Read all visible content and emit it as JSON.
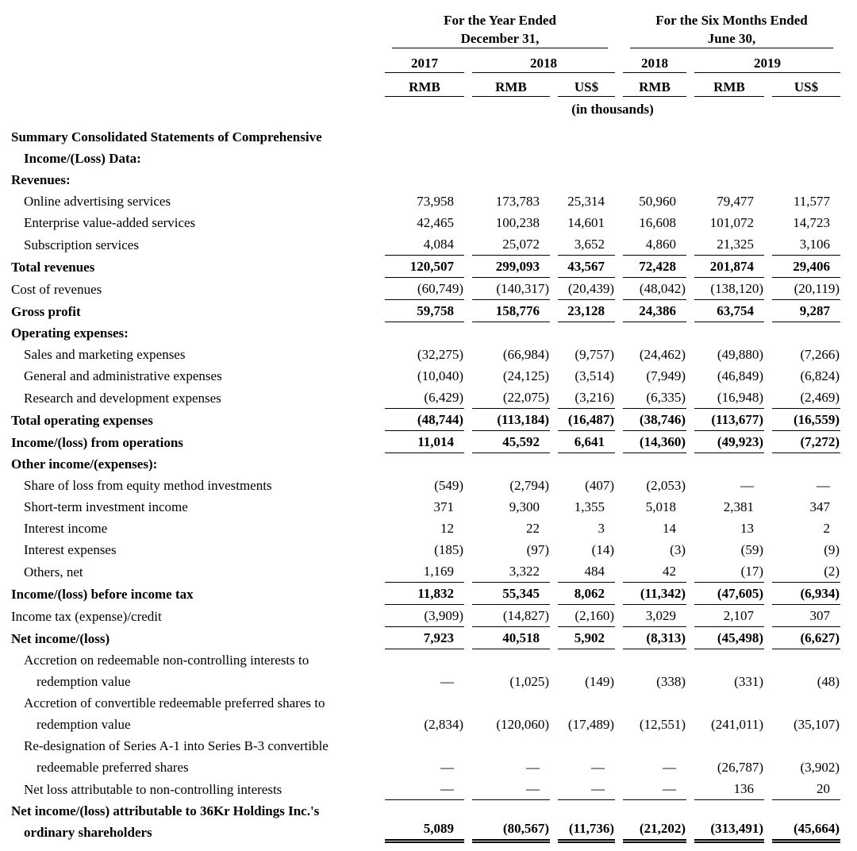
{
  "page": {
    "background": "#ffffff",
    "text_color": "#000000"
  },
  "table": {
    "col_groups": [
      {
        "line1": "For the Year Ended",
        "line2": "December 31,"
      },
      {
        "line1": "For the Six Months Ended",
        "line2": "June 30,"
      }
    ],
    "year_headers": [
      {
        "label": "2017",
        "span": 1
      },
      {
        "label": "2018",
        "span": 2
      },
      {
        "label": "2018",
        "span": 1
      },
      {
        "label": "2019",
        "span": 2
      }
    ],
    "currency_headers": [
      "RMB",
      "RMB",
      "US$",
      "RMB",
      "RMB",
      "US$"
    ],
    "units_note": "(in thousands)",
    "rows": [
      {
        "lines": [
          "Summary Consolidated Statements of Comprehensive",
          "Income/(Loss) Data:"
        ],
        "indents": [
          0,
          1
        ],
        "bold": true,
        "values": null,
        "rule": "none"
      },
      {
        "lines": [
          "Revenues:"
        ],
        "indents": [
          0
        ],
        "bold": true,
        "values": null,
        "rule": "none"
      },
      {
        "lines": [
          "Online advertising services"
        ],
        "indents": [
          1
        ],
        "bold": false,
        "values": [
          "73,958",
          "173,783",
          "25,314",
          "50,960",
          "79,477",
          "11,577"
        ],
        "rule": "none"
      },
      {
        "lines": [
          "Enterprise value-added services"
        ],
        "indents": [
          1
        ],
        "bold": false,
        "values": [
          "42,465",
          "100,238",
          "14,601",
          "16,608",
          "101,072",
          "14,723"
        ],
        "rule": "none"
      },
      {
        "lines": [
          "Subscription services"
        ],
        "indents": [
          1
        ],
        "bold": false,
        "values": [
          "4,084",
          "25,072",
          "3,652",
          "4,860",
          "21,325",
          "3,106"
        ],
        "rule": "single"
      },
      {
        "lines": [
          "Total revenues"
        ],
        "indents": [
          0
        ],
        "bold": true,
        "values": [
          "120,507",
          "299,093",
          "43,567",
          "72,428",
          "201,874",
          "29,406"
        ],
        "rule": "single"
      },
      {
        "lines": [
          "Cost of revenues"
        ],
        "indents": [
          0
        ],
        "bold": false,
        "values": [
          "(60,749)",
          "(140,317)",
          "(20,439)",
          "(48,042)",
          "(138,120)",
          "(20,119)"
        ],
        "rule": "single"
      },
      {
        "lines": [
          "Gross profit"
        ],
        "indents": [
          0
        ],
        "bold": true,
        "values": [
          "59,758",
          "158,776",
          "23,128",
          "24,386",
          "63,754",
          "9,287"
        ],
        "rule": "single"
      },
      {
        "lines": [
          "Operating expenses:"
        ],
        "indents": [
          0
        ],
        "bold": true,
        "values": null,
        "rule": "none"
      },
      {
        "lines": [
          "Sales and marketing expenses"
        ],
        "indents": [
          1
        ],
        "bold": false,
        "values": [
          "(32,275)",
          "(66,984)",
          "(9,757)",
          "(24,462)",
          "(49,880)",
          "(7,266)"
        ],
        "rule": "none"
      },
      {
        "lines": [
          "General and administrative expenses"
        ],
        "indents": [
          1
        ],
        "bold": false,
        "values": [
          "(10,040)",
          "(24,125)",
          "(3,514)",
          "(7,949)",
          "(46,849)",
          "(6,824)"
        ],
        "rule": "none"
      },
      {
        "lines": [
          "Research and development expenses"
        ],
        "indents": [
          1
        ],
        "bold": false,
        "values": [
          "(6,429)",
          "(22,075)",
          "(3,216)",
          "(6,335)",
          "(16,948)",
          "(2,469)"
        ],
        "rule": "single"
      },
      {
        "lines": [
          "Total operating expenses"
        ],
        "indents": [
          0
        ],
        "bold": true,
        "values": [
          "(48,744)",
          "(113,184)",
          "(16,487)",
          "(38,746)",
          "(113,677)",
          "(16,559)"
        ],
        "rule": "single"
      },
      {
        "lines": [
          "Income/(loss) from operations"
        ],
        "indents": [
          0
        ],
        "bold": true,
        "values": [
          "11,014",
          "45,592",
          "6,641",
          "(14,360)",
          "(49,923)",
          "(7,272)"
        ],
        "rule": "single"
      },
      {
        "lines": [
          "Other income/(expenses):"
        ],
        "indents": [
          0
        ],
        "bold": true,
        "values": null,
        "rule": "none"
      },
      {
        "lines": [
          "Share of loss from equity method investments"
        ],
        "indents": [
          1
        ],
        "bold": false,
        "values": [
          "(549)",
          "(2,794)",
          "(407)",
          "(2,053)",
          "—",
          "—"
        ],
        "rule": "none"
      },
      {
        "lines": [
          "Short-term investment income"
        ],
        "indents": [
          1
        ],
        "bold": false,
        "values": [
          "371",
          "9,300",
          "1,355",
          "5,018",
          "2,381",
          "347"
        ],
        "rule": "none"
      },
      {
        "lines": [
          "Interest income"
        ],
        "indents": [
          1
        ],
        "bold": false,
        "values": [
          "12",
          "22",
          "3",
          "14",
          "13",
          "2"
        ],
        "rule": "none"
      },
      {
        "lines": [
          "Interest expenses"
        ],
        "indents": [
          1
        ],
        "bold": false,
        "values": [
          "(185)",
          "(97)",
          "(14)",
          "(3)",
          "(59)",
          "(9)"
        ],
        "rule": "none"
      },
      {
        "lines": [
          "Others, net"
        ],
        "indents": [
          1
        ],
        "bold": false,
        "values": [
          "1,169",
          "3,322",
          "484",
          "42",
          "(17)",
          "(2)"
        ],
        "rule": "single"
      },
      {
        "lines": [
          "Income/(loss) before income tax"
        ],
        "indents": [
          0
        ],
        "bold": true,
        "values": [
          "11,832",
          "55,345",
          "8,062",
          "(11,342)",
          "(47,605)",
          "(6,934)"
        ],
        "rule": "single"
      },
      {
        "lines": [
          "Income tax (expense)/credit"
        ],
        "indents": [
          0
        ],
        "bold": false,
        "values": [
          "(3,909)",
          "(14,827)",
          "(2,160)",
          "3,029",
          "2,107",
          "307"
        ],
        "rule": "single"
      },
      {
        "lines": [
          "Net income/(loss)"
        ],
        "indents": [
          0
        ],
        "bold": true,
        "values": [
          "7,923",
          "40,518",
          "5,902",
          "(8,313)",
          "(45,498)",
          "(6,627)"
        ],
        "rule": "single"
      },
      {
        "lines": [
          "Accretion on redeemable non-controlling interests to",
          "redemption value"
        ],
        "indents": [
          1,
          2
        ],
        "bold": false,
        "values": [
          "—",
          "(1,025)",
          "(149)",
          "(338)",
          "(331)",
          "(48)"
        ],
        "rule": "none"
      },
      {
        "lines": [
          "Accretion of convertible redeemable preferred shares to",
          "redemption value"
        ],
        "indents": [
          1,
          2
        ],
        "bold": false,
        "values": [
          "(2,834)",
          "(120,060)",
          "(17,489)",
          "(12,551)",
          "(241,011)",
          "(35,107)"
        ],
        "rule": "none"
      },
      {
        "lines": [
          "Re-designation of Series A-1 into Series B-3 convertible",
          "redeemable preferred shares"
        ],
        "indents": [
          1,
          2
        ],
        "bold": false,
        "values": [
          "—",
          "—",
          "—",
          "—",
          "(26,787)",
          "(3,902)"
        ],
        "rule": "none"
      },
      {
        "lines": [
          "Net loss attributable to non-controlling interests"
        ],
        "indents": [
          1
        ],
        "bold": false,
        "values": [
          "—",
          "—",
          "—",
          "—",
          "136",
          "20"
        ],
        "rule": "single"
      },
      {
        "lines": [
          "Net income/(loss) attributable to 36Kr Holdings Inc.'s",
          "ordinary shareholders"
        ],
        "indents": [
          0,
          1
        ],
        "bold": true,
        "values": [
          "5,089",
          "(80,567)",
          "(11,736)",
          "(21,202)",
          "(313,491)",
          "(45,664)"
        ],
        "rule": "double"
      }
    ]
  }
}
